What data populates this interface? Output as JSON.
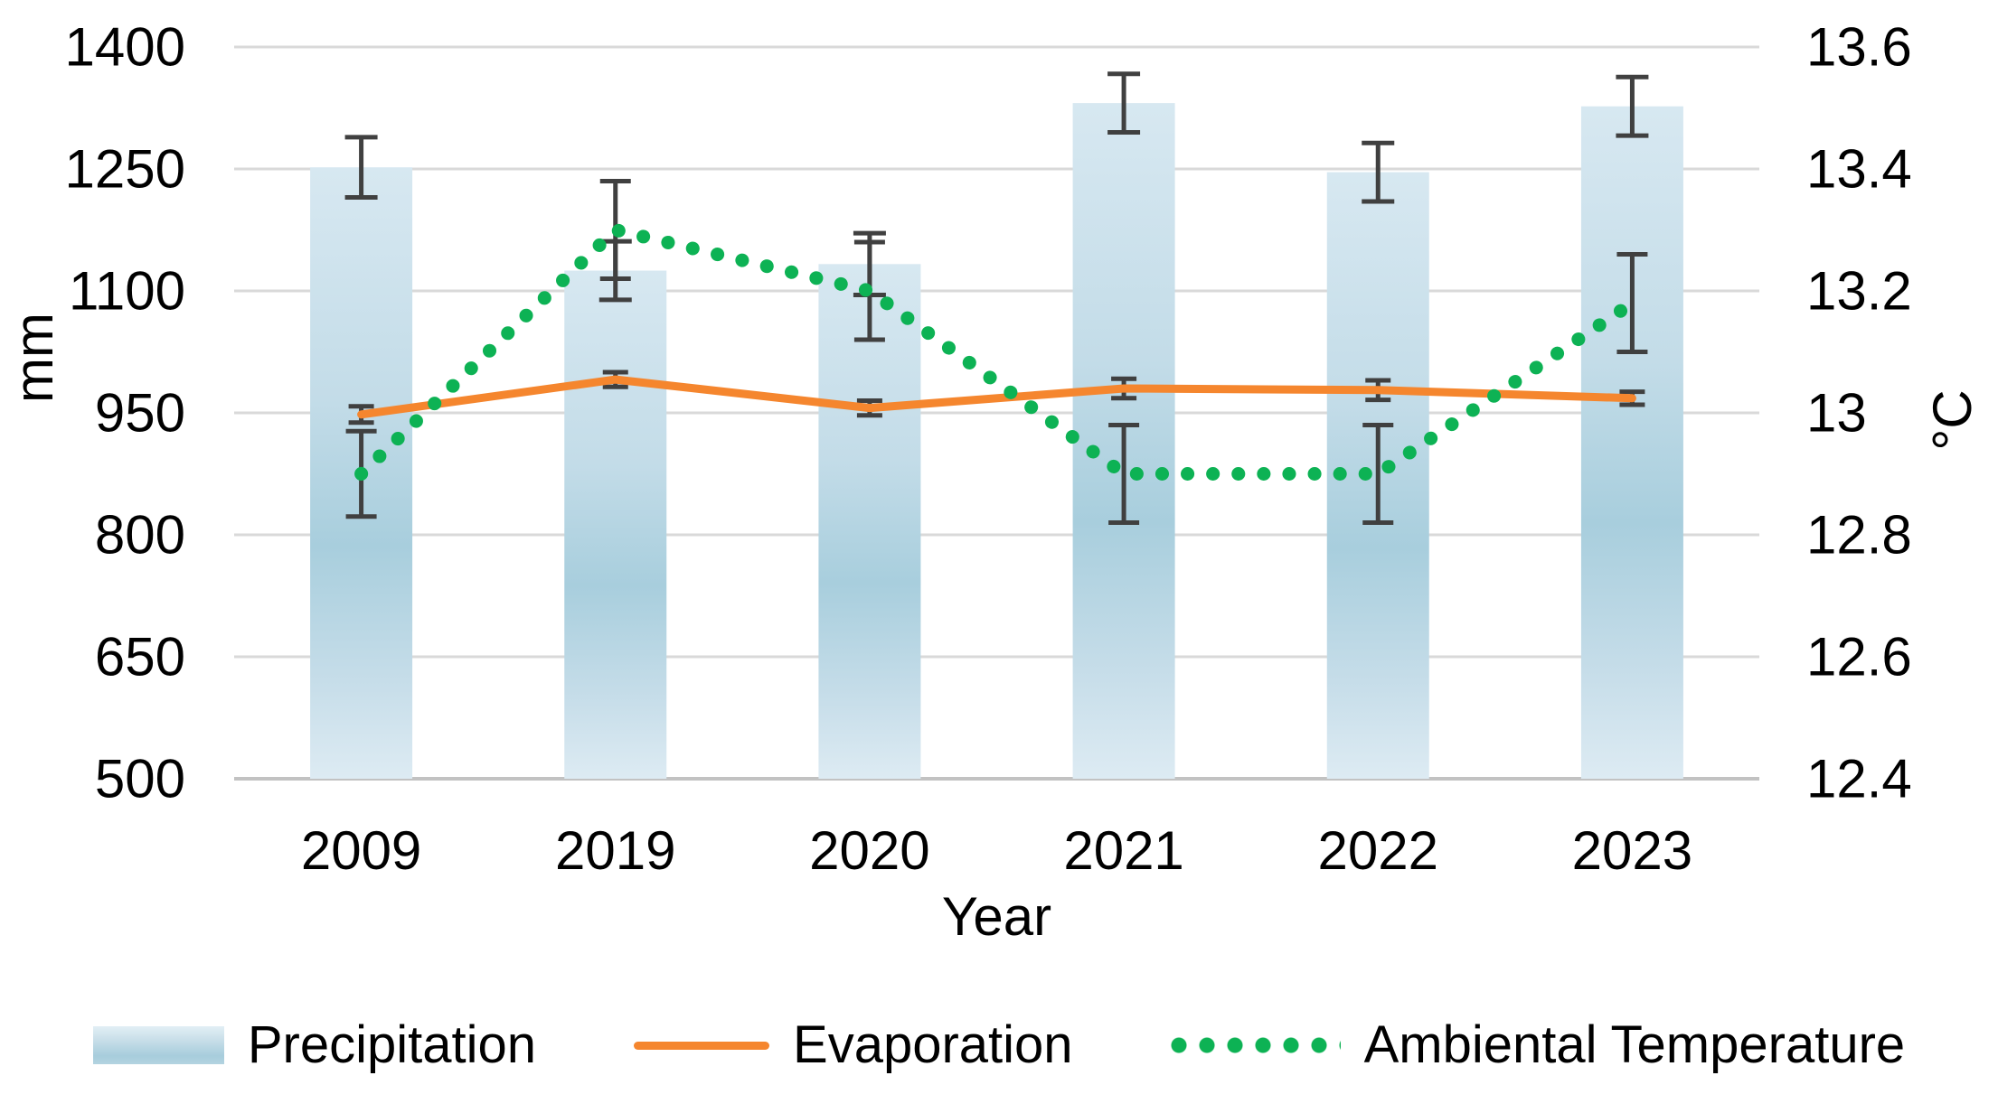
{
  "legend": {
    "precipitation_label": "Precipitation",
    "evaporation_label": "Evaporation",
    "temperature_label": "Ambiental Temperature"
  },
  "axes": {
    "left_title": "mm",
    "right_title": "°C",
    "x_title": "Year"
  },
  "colors": {
    "bar_top": "#d7e8f1",
    "bar_mid": "#a8cedd",
    "bar_bottom": "#ddebf3",
    "evaporation": "#F5862E",
    "temperature": "#0db254",
    "error_bar": "#404040",
    "gridline": "#d9d9d9",
    "axis_line": "#c2c2c2",
    "text": "#000000"
  },
  "chart_data": {
    "type": "combo",
    "categories": [
      "2009",
      "2019",
      "2020",
      "2021",
      "2022",
      "2023"
    ],
    "series": [
      {
        "name": "Precipitation",
        "type": "bar",
        "axis": "left",
        "unit": "mm",
        "values": [
          1252,
          1125,
          1133,
          1331,
          1246,
          1327
        ],
        "errors": [
          37,
          36,
          38,
          36,
          36,
          36
        ]
      },
      {
        "name": "Evaporation",
        "type": "line",
        "axis": "left",
        "unit": "mm",
        "values": [
          948,
          991,
          956,
          980,
          978,
          968
        ],
        "errors": [
          10,
          9,
          9,
          12,
          12,
          8
        ]
      },
      {
        "name": "Ambiental Temperature",
        "type": "dotted-line",
        "axis": "right",
        "unit": "°C",
        "values": [
          12.9,
          13.3,
          13.2,
          12.9,
          12.9,
          13.18
        ],
        "errors": [
          0.07,
          0.08,
          0.08,
          0.08,
          0.08,
          0.08
        ]
      }
    ],
    "left_axis": {
      "title": "mm",
      "min": 500,
      "max": 1400,
      "ticks": [
        1400,
        1250,
        1100,
        950,
        800,
        650,
        500
      ]
    },
    "right_axis": {
      "title": "°C",
      "min": 12.4,
      "max": 13.6,
      "ticks": [
        "13.6",
        "13.4",
        "13.2",
        "13",
        "12.8",
        "12.6",
        "12.4"
      ]
    },
    "x_axis": {
      "title": "Year"
    },
    "grid": true,
    "legend_position": "bottom"
  }
}
